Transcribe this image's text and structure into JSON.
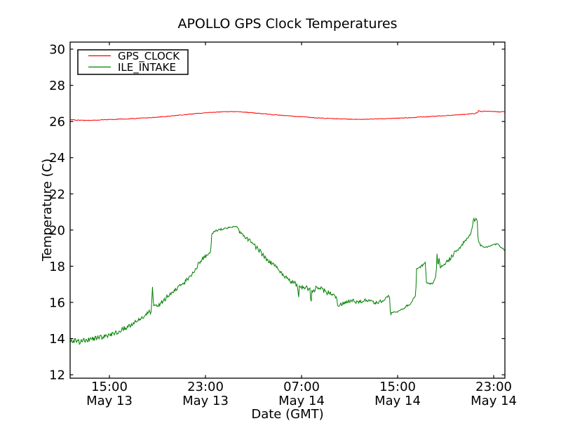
{
  "figure": {
    "background": "#ffffff"
  },
  "chart_data": {
    "type": "line",
    "title": "APOLLO GPS Clock Temperatures",
    "xlabel": "Date (GMT)",
    "ylabel": "Temperature (C)",
    "grid": false,
    "legend_position": "upper left",
    "x_unit": "hours_from_May13_0000_GMT",
    "xlim": [
      11.73,
      47.93
    ],
    "ylim": [
      11.81,
      30.39
    ],
    "yticks": [
      12,
      14,
      16,
      18,
      20,
      22,
      24,
      26,
      28,
      30
    ],
    "xticks": [
      {
        "value": 15,
        "time": "15:00",
        "date": "May 13"
      },
      {
        "value": 23,
        "time": "23:00",
        "date": "May 13"
      },
      {
        "value": 31,
        "time": "07:00",
        "date": "May 14"
      },
      {
        "value": 39,
        "time": "15:00",
        "date": "May 14"
      },
      {
        "value": 47,
        "time": "23:00",
        "date": "May 14"
      }
    ],
    "series": [
      {
        "name": "GPS_CLOCK",
        "color": "#ff0000",
        "points_format": [
          "t_hours",
          "temp_c",
          "noise_c"
        ],
        "points": [
          [
            11.73,
            26.1,
            0.018
          ],
          [
            12.6,
            26.07,
            0.018
          ],
          [
            13.5,
            26.06,
            0.018
          ],
          [
            14.4,
            26.09,
            0.018
          ],
          [
            15.3,
            26.12,
            0.018
          ],
          [
            16.2,
            26.14,
            0.018
          ],
          [
            17.1,
            26.17,
            0.018
          ],
          [
            18.0,
            26.2,
            0.018
          ],
          [
            19.0,
            26.24,
            0.018
          ],
          [
            20.0,
            26.3,
            0.018
          ],
          [
            21.0,
            26.36,
            0.018
          ],
          [
            21.9,
            26.42,
            0.018
          ],
          [
            22.8,
            26.47,
            0.018
          ],
          [
            23.7,
            26.51,
            0.018
          ],
          [
            24.6,
            26.54,
            0.018
          ],
          [
            25.4,
            26.55,
            0.018
          ],
          [
            26.2,
            26.52,
            0.018
          ],
          [
            27.1,
            26.47,
            0.018
          ],
          [
            28.0,
            26.42,
            0.018
          ],
          [
            29.0,
            26.36,
            0.018
          ],
          [
            30.0,
            26.31,
            0.018
          ],
          [
            31.0,
            26.26,
            0.018
          ],
          [
            32.0,
            26.21,
            0.018
          ],
          [
            33.0,
            26.18,
            0.018
          ],
          [
            34.0,
            26.15,
            0.018
          ],
          [
            35.0,
            26.13,
            0.018
          ],
          [
            36.0,
            26.12,
            0.018
          ],
          [
            37.0,
            26.14,
            0.018
          ],
          [
            38.0,
            26.16,
            0.018
          ],
          [
            39.0,
            26.18,
            0.018
          ],
          [
            40.0,
            26.21,
            0.018
          ],
          [
            41.0,
            26.25,
            0.018
          ],
          [
            42.0,
            26.29,
            0.018
          ],
          [
            43.0,
            26.33,
            0.018
          ],
          [
            44.0,
            26.37,
            0.018
          ],
          [
            44.8,
            26.41,
            0.018
          ],
          [
            45.4,
            26.44,
            0.02
          ],
          [
            45.65,
            26.5,
            0.02
          ],
          [
            45.75,
            26.62,
            0.02
          ],
          [
            45.95,
            26.55,
            0.02
          ],
          [
            46.3,
            26.57,
            0.02
          ],
          [
            46.7,
            26.55,
            0.02
          ],
          [
            47.1,
            26.56,
            0.02
          ],
          [
            47.5,
            26.53,
            0.02
          ],
          [
            47.93,
            26.55,
            0.02
          ]
        ]
      },
      {
        "name": "ILE_INTAKE",
        "color": "#007f00",
        "points_format": [
          "t_hours",
          "temp_c",
          "noise_c"
        ],
        "points": [
          [
            11.73,
            13.8,
            0.13
          ],
          [
            12.1,
            13.9,
            0.13
          ],
          [
            12.5,
            13.8,
            0.13
          ],
          [
            12.9,
            13.9,
            0.13
          ],
          [
            13.3,
            13.95,
            0.13
          ],
          [
            13.7,
            14.0,
            0.12
          ],
          [
            14.1,
            14.05,
            0.12
          ],
          [
            14.5,
            14.1,
            0.13
          ],
          [
            15.0,
            14.15,
            0.13
          ],
          [
            15.6,
            14.35,
            0.13
          ],
          [
            16.2,
            14.55,
            0.13
          ],
          [
            16.8,
            14.75,
            0.13
          ],
          [
            17.4,
            15.0,
            0.12
          ],
          [
            18.0,
            15.25,
            0.11
          ],
          [
            18.3,
            15.55,
            0.08
          ],
          [
            18.42,
            15.4,
            0.05
          ],
          [
            18.5,
            15.6,
            0.04
          ],
          [
            18.58,
            16.9,
            0.03
          ],
          [
            18.68,
            15.85,
            0.05
          ],
          [
            19.0,
            15.8,
            0.1
          ],
          [
            19.5,
            16.1,
            0.12
          ],
          [
            20.0,
            16.45,
            0.13
          ],
          [
            20.5,
            16.7,
            0.13
          ],
          [
            21.0,
            16.95,
            0.13
          ],
          [
            21.5,
            17.3,
            0.12
          ],
          [
            22.0,
            17.7,
            0.12
          ],
          [
            22.4,
            18.1,
            0.11
          ],
          [
            22.8,
            18.45,
            0.1
          ],
          [
            23.1,
            18.6,
            0.08
          ],
          [
            23.35,
            18.75,
            0.05
          ],
          [
            23.44,
            18.8,
            0.03
          ],
          [
            23.52,
            19.75,
            0.04
          ],
          [
            23.7,
            19.9,
            0.06
          ],
          [
            24.0,
            20.0,
            0.06
          ],
          [
            24.4,
            20.05,
            0.06
          ],
          [
            24.8,
            20.1,
            0.05
          ],
          [
            25.2,
            20.18,
            0.05
          ],
          [
            25.55,
            20.22,
            0.04
          ],
          [
            25.72,
            20.12,
            0.04
          ],
          [
            25.85,
            19.85,
            0.08
          ],
          [
            26.2,
            19.7,
            0.11
          ],
          [
            26.6,
            19.45,
            0.12
          ],
          [
            27.0,
            19.2,
            0.12
          ],
          [
            27.5,
            18.85,
            0.13
          ],
          [
            28.0,
            18.45,
            0.13
          ],
          [
            28.5,
            18.15,
            0.13
          ],
          [
            29.0,
            17.85,
            0.13
          ],
          [
            29.5,
            17.5,
            0.14
          ],
          [
            30.0,
            17.25,
            0.15
          ],
          [
            30.4,
            17.05,
            0.15
          ],
          [
            30.68,
            16.95,
            0.08
          ],
          [
            30.74,
            16.0,
            0.04
          ],
          [
            30.8,
            16.9,
            0.08
          ],
          [
            31.1,
            16.85,
            0.17
          ],
          [
            31.45,
            16.75,
            0.18
          ],
          [
            31.72,
            16.7,
            0.1
          ],
          [
            31.78,
            15.8,
            0.04
          ],
          [
            31.86,
            16.65,
            0.1
          ],
          [
            32.2,
            16.75,
            0.16
          ],
          [
            32.6,
            16.75,
            0.15
          ],
          [
            33.0,
            16.6,
            0.15
          ],
          [
            33.35,
            16.5,
            0.13
          ],
          [
            33.7,
            16.35,
            0.12
          ],
          [
            33.92,
            16.25,
            0.06
          ],
          [
            34.0,
            15.8,
            0.05
          ],
          [
            34.3,
            15.9,
            0.08
          ],
          [
            34.7,
            16.0,
            0.1
          ],
          [
            35.1,
            16.1,
            0.11
          ],
          [
            35.5,
            16.05,
            0.11
          ],
          [
            35.9,
            16.0,
            0.11
          ],
          [
            36.3,
            16.1,
            0.11
          ],
          [
            36.7,
            16.05,
            0.1
          ],
          [
            37.1,
            15.95,
            0.1
          ],
          [
            37.5,
            16.05,
            0.1
          ],
          [
            37.9,
            16.15,
            0.09
          ],
          [
            38.15,
            16.3,
            0.06
          ],
          [
            38.32,
            16.4,
            0.04
          ],
          [
            38.4,
            15.35,
            0.04
          ],
          [
            38.6,
            15.45,
            0.06
          ],
          [
            39.0,
            15.5,
            0.07
          ],
          [
            39.4,
            15.6,
            0.08
          ],
          [
            39.8,
            15.8,
            0.08
          ],
          [
            40.1,
            16.0,
            0.08
          ],
          [
            40.35,
            16.25,
            0.06
          ],
          [
            40.5,
            16.4,
            0.04
          ],
          [
            40.58,
            17.85,
            0.04
          ],
          [
            40.75,
            17.9,
            0.07
          ],
          [
            41.0,
            18.0,
            0.08
          ],
          [
            41.2,
            18.15,
            0.05
          ],
          [
            41.3,
            18.2,
            0.03
          ],
          [
            41.4,
            17.1,
            0.04
          ],
          [
            41.6,
            17.0,
            0.06
          ],
          [
            41.85,
            17.05,
            0.07
          ],
          [
            42.05,
            17.2,
            0.07
          ],
          [
            42.2,
            17.5,
            0.05
          ],
          [
            42.28,
            18.7,
            0.03
          ],
          [
            42.36,
            17.95,
            0.04
          ],
          [
            42.44,
            18.45,
            0.03
          ],
          [
            42.55,
            17.95,
            0.07
          ],
          [
            42.8,
            18.05,
            0.1
          ],
          [
            43.1,
            18.25,
            0.12
          ],
          [
            43.4,
            18.45,
            0.12
          ],
          [
            43.7,
            18.7,
            0.12
          ],
          [
            44.0,
            18.95,
            0.11
          ],
          [
            44.3,
            19.15,
            0.1
          ],
          [
            44.6,
            19.35,
            0.1
          ],
          [
            44.9,
            19.6,
            0.09
          ],
          [
            45.1,
            19.85,
            0.07
          ],
          [
            45.25,
            20.25,
            0.05
          ],
          [
            45.33,
            20.75,
            0.03
          ],
          [
            45.42,
            20.45,
            0.04
          ],
          [
            45.52,
            20.65,
            0.03
          ],
          [
            45.62,
            20.55,
            0.03
          ],
          [
            45.7,
            19.45,
            0.04
          ],
          [
            45.9,
            19.15,
            0.05
          ],
          [
            46.2,
            19.05,
            0.05
          ],
          [
            46.5,
            19.05,
            0.05
          ],
          [
            46.8,
            19.15,
            0.04
          ],
          [
            47.1,
            19.2,
            0.04
          ],
          [
            47.35,
            19.25,
            0.04
          ],
          [
            47.6,
            19.05,
            0.05
          ],
          [
            47.93,
            18.9,
            0.05
          ]
        ]
      }
    ]
  }
}
